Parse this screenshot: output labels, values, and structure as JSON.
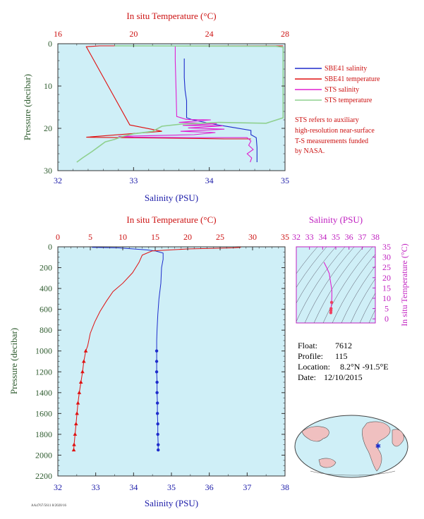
{
  "colors": {
    "plot_bg": "#cfeff7",
    "salinity_blue": "#1e2ccc",
    "temperature_red": "#e01010",
    "sts_salinity": "#e020d0",
    "sts_temperature": "#8fd08f",
    "green_axis": "#2e5b2e",
    "magenta_axis": "#c020c0"
  },
  "top_chart": {
    "top_axis_title": "In situ Temperature (°C)",
    "bottom_axis_title": "Salinity (PSU)",
    "y_axis_title": "Pressure (decibar)",
    "legend": [
      {
        "label": "SBE41 salinity",
        "color": "#1e2ccc"
      },
      {
        "label": "SBE41 temperature",
        "color": "#e01010"
      },
      {
        "label": "STS salinity",
        "color": "#e020d0"
      },
      {
        "label": "STS temperature",
        "color": "#8fd08f"
      }
    ],
    "note_lines": [
      "STS refers to auxiliary",
      "high-resolution near-surface",
      "T-S measurements funded",
      "by NASA."
    ]
  },
  "bottom_chart": {
    "top_axis_title": "In situ Temperature (°C)",
    "bottom_axis_title": "Salinity (PSU)",
    "y_axis_title": "Pressure (decibar)"
  },
  "ts_chart": {
    "top_axis_title": "Salinity (PSU)",
    "right_axis_title": "In situ Temperature (°C)"
  },
  "info": {
    "float_label": "Float:",
    "float_value": "7612",
    "profile_label": "Profile:",
    "profile_value": "115",
    "location_label": "Location:",
    "location_value": "8.2°N  -91.5°E",
    "date_label": "Date:",
    "date_value": "12/10/2015"
  },
  "footer_note": "AA4767/5611 8/2020/16",
  "chart_data": [
    {
      "type": "line",
      "title": "",
      "xlabel": "Salinity (PSU)",
      "x2label": "In situ Temperature (°C)",
      "ylabel": "Pressure (decibar)",
      "xlim": [
        32,
        35
      ],
      "x2lim": [
        16,
        28
      ],
      "ylim": [
        30,
        0
      ],
      "x_ticks": [
        32,
        33,
        34,
        35
      ],
      "x2_ticks": [
        16,
        20,
        24,
        28
      ],
      "y_ticks": [
        0,
        10,
        20,
        30
      ],
      "grid": false,
      "legend_position": "right",
      "series": [
        {
          "name": "SBE41 salinity",
          "axis": "salinity",
          "points": [
            [
              33.67,
              3.5
            ],
            [
              33.67,
              8
            ],
            [
              33.68,
              11
            ],
            [
              33.7,
              13.5
            ],
            [
              33.7,
              17.5
            ],
            [
              33.78,
              18
            ],
            [
              33.92,
              18.5
            ],
            [
              34.05,
              19
            ],
            [
              34.25,
              19.6
            ],
            [
              34.55,
              20.5
            ],
            [
              34.55,
              21.5
            ],
            [
              34.62,
              22.2
            ],
            [
              34.63,
              24.5
            ],
            [
              34.63,
              28
            ]
          ]
        },
        {
          "name": "SBE41 temperature",
          "axis": "temperature",
          "points": [
            [
              27.9,
              0.5
            ],
            [
              18.2,
              0.5
            ],
            [
              17.5,
              0.7
            ],
            [
              19.8,
              19.2
            ],
            [
              21.5,
              20.7
            ],
            [
              17.5,
              22.1
            ],
            [
              23.5,
              22.4
            ],
            [
              24.8,
              22.5
            ],
            [
              26.2,
              22.5
            ]
          ]
        },
        {
          "name": "STS salinity",
          "axis": "salinity",
          "points": [
            [
              33.55,
              0.6
            ],
            [
              33.55,
              4
            ],
            [
              33.56,
              10
            ],
            [
              33.57,
              17.2
            ],
            [
              33.7,
              17.9
            ],
            [
              34.02,
              18.0
            ],
            [
              33.6,
              18.6
            ],
            [
              34.1,
              18.9
            ],
            [
              33.65,
              19.3
            ],
            [
              34.18,
              19.4
            ],
            [
              33.72,
              19.9
            ],
            [
              34.2,
              20.2
            ],
            [
              33.62,
              20.7
            ],
            [
              34.08,
              21.0
            ],
            [
              33.8,
              21.5
            ],
            [
              32.8,
              21.9
            ],
            [
              33.0,
              22.1
            ],
            [
              33.8,
              22.2
            ],
            [
              34.5,
              22.2
            ],
            [
              34.55,
              23.0
            ],
            [
              34.52,
              24.0
            ],
            [
              34.58,
              25.0
            ],
            [
              34.5,
              26.0
            ],
            [
              34.56,
              27.0
            ],
            [
              34.54,
              28.0
            ]
          ]
        },
        {
          "name": "STS temperature",
          "axis": "temperature",
          "points": [
            [
              19.0,
              0.5
            ],
            [
              27.5,
              0.6
            ],
            [
              27.9,
              0.8
            ],
            [
              27.9,
              17.5
            ],
            [
              27.0,
              18.8
            ],
            [
              24.5,
              18.6
            ],
            [
              22.5,
              19.0
            ],
            [
              21.5,
              19.5
            ],
            [
              21.0,
              20.7
            ],
            [
              20.0,
              21.3
            ],
            [
              19.5,
              21.8
            ],
            [
              19.0,
              22.6
            ],
            [
              18.5,
              23.2
            ],
            [
              18.2,
              24.2
            ],
            [
              17.8,
              25.5
            ],
            [
              17.3,
              27.0
            ],
            [
              17.0,
              28.0
            ]
          ]
        }
      ]
    },
    {
      "type": "line",
      "title": "",
      "xlabel": "Salinity (PSU)",
      "x2label": "In situ Temperature (°C)",
      "ylabel": "Pressure (decibar)",
      "xlim": [
        32,
        38
      ],
      "x2lim": [
        0,
        35
      ],
      "ylim": [
        2200,
        0
      ],
      "x_ticks": [
        32,
        33,
        34,
        35,
        36,
        37,
        38
      ],
      "x2_ticks": [
        0,
        5,
        10,
        15,
        20,
        25,
        30,
        35
      ],
      "y_ticks": [
        0,
        200,
        400,
        600,
        800,
        1000,
        1200,
        1400,
        1600,
        1800,
        2000,
        2200
      ],
      "grid": false,
      "series": [
        {
          "name": "salinity",
          "axis": "salinity",
          "points": [
            [
              32.9,
              5
            ],
            [
              33.6,
              10
            ],
            [
              34.0,
              20
            ],
            [
              34.35,
              30
            ],
            [
              34.58,
              40
            ],
            [
              34.78,
              60
            ],
            [
              34.78,
              120
            ],
            [
              34.74,
              200
            ],
            [
              34.72,
              350
            ],
            [
              34.67,
              500
            ],
            [
              34.64,
              650
            ],
            [
              34.62,
              800
            ],
            [
              34.61,
              900
            ],
            [
              34.61,
              1000
            ],
            [
              34.61,
              1100
            ],
            [
              34.61,
              1200
            ],
            [
              34.62,
              1300
            ],
            [
              34.62,
              1400
            ],
            [
              34.63,
              1500
            ],
            [
              34.63,
              1600
            ],
            [
              34.64,
              1700
            ],
            [
              34.64,
              1800
            ],
            [
              34.65,
              1900
            ],
            [
              34.65,
              1950
            ]
          ]
        },
        {
          "name": "temperature",
          "axis": "temperature",
          "points": [
            [
              28.2,
              5
            ],
            [
              27.0,
              10
            ],
            [
              20.0,
              20
            ],
            [
              14.5,
              40
            ],
            [
              13.0,
              80
            ],
            [
              12.5,
              150
            ],
            [
              11.5,
              250
            ],
            [
              10.0,
              350
            ],
            [
              8.5,
              430
            ],
            [
              7.5,
              520
            ],
            [
              6.5,
              620
            ],
            [
              5.7,
              720
            ],
            [
              5.0,
              830
            ],
            [
              4.6,
              950
            ],
            [
              4.3,
              1000
            ],
            [
              4.0,
              1100
            ],
            [
              3.8,
              1200
            ],
            [
              3.55,
              1300
            ],
            [
              3.3,
              1400
            ],
            [
              3.1,
              1500
            ],
            [
              2.95,
              1600
            ],
            [
              2.8,
              1700
            ],
            [
              2.65,
              1800
            ],
            [
              2.5,
              1900
            ],
            [
              2.45,
              1950
            ]
          ]
        }
      ]
    },
    {
      "type": "line",
      "title": "",
      "xlabel": "Salinity (PSU)",
      "ylabel": "In situ Temperature (°C)",
      "xlim": [
        32,
        38
      ],
      "ylim": [
        -2,
        35
      ],
      "x_ticks": [
        32,
        33,
        34,
        35,
        36,
        37,
        38
      ],
      "y_ticks": [
        0,
        5,
        10,
        15,
        20,
        25,
        30,
        35
      ],
      "series": [
        {
          "name": "T-S",
          "points": [
            [
              34.1,
              27.5
            ],
            [
              34.3,
              25
            ],
            [
              34.5,
              22
            ],
            [
              34.6,
              18
            ],
            [
              34.7,
              14
            ],
            [
              34.7,
              11
            ],
            [
              34.68,
              8
            ],
            [
              34.64,
              5
            ],
            [
              34.63,
              4
            ],
            [
              34.62,
              3
            ]
          ]
        }
      ]
    }
  ]
}
